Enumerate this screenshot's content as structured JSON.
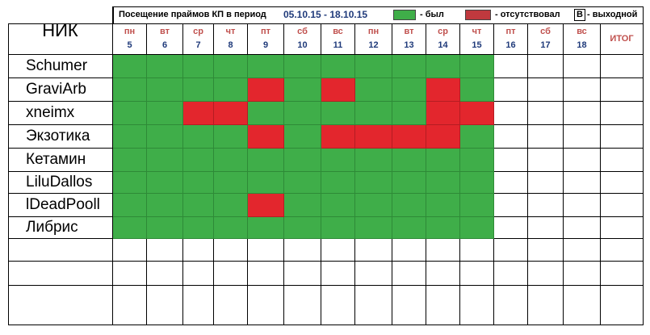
{
  "header": {
    "title": "Посещение праймов КП в период",
    "period": "05.10.15 - 18.10.15",
    "nik_label": "НИК",
    "itog_label": "ИТОГ"
  },
  "legend": {
    "present_label": "- был",
    "absent_label": "-  отсутствовал",
    "weekend_marker": "В",
    "weekend_label": "- выходной",
    "present_color": "#3fae49",
    "absent_color": "#e3262d"
  },
  "days": [
    {
      "dow": "пн",
      "num": "5"
    },
    {
      "dow": "вт",
      "num": "6"
    },
    {
      "dow": "ср",
      "num": "7"
    },
    {
      "dow": "чт",
      "num": "8"
    },
    {
      "dow": "пт",
      "num": "9"
    },
    {
      "dow": "сб",
      "num": "10"
    },
    {
      "dow": "вс",
      "num": "11"
    },
    {
      "dow": "пн",
      "num": "12"
    },
    {
      "dow": "вт",
      "num": "13"
    },
    {
      "dow": "ср",
      "num": "14"
    },
    {
      "dow": "чт",
      "num": "15"
    },
    {
      "dow": "пт",
      "num": "16"
    },
    {
      "dow": "сб",
      "num": "17"
    },
    {
      "dow": "вс",
      "num": "18"
    }
  ],
  "rows": [
    {
      "name": "Schumer",
      "marks": [
        "G",
        "G",
        "G",
        "G",
        "G",
        "G",
        "G",
        "G",
        "G",
        "G",
        "G",
        "",
        "",
        ""
      ]
    },
    {
      "name": "GraviArb",
      "marks": [
        "G",
        "G",
        "G",
        "G",
        "R",
        "G",
        "R",
        "G",
        "G",
        "R",
        "G",
        "",
        "",
        ""
      ]
    },
    {
      "name": "xneimx",
      "marks": [
        "G",
        "G",
        "R",
        "R",
        "G",
        "G",
        "G",
        "G",
        "G",
        "R",
        "R",
        "",
        "",
        ""
      ]
    },
    {
      "name": "Экзотика",
      "marks": [
        "G",
        "G",
        "G",
        "G",
        "R",
        "G",
        "R",
        "R",
        "R",
        "R",
        "G",
        "",
        "",
        ""
      ]
    },
    {
      "name": "Кетамин",
      "marks": [
        "G",
        "G",
        "G",
        "G",
        "G",
        "G",
        "G",
        "G",
        "G",
        "G",
        "G",
        "",
        "",
        ""
      ]
    },
    {
      "name": "LiluDallos",
      "marks": [
        "G",
        "G",
        "G",
        "G",
        "G",
        "G",
        "G",
        "G",
        "G",
        "G",
        "G",
        "",
        "",
        ""
      ]
    },
    {
      "name": "lDeadPooll",
      "marks": [
        "G",
        "G",
        "G",
        "G",
        "R",
        "G",
        "G",
        "G",
        "G",
        "G",
        "G",
        "",
        "",
        ""
      ]
    },
    {
      "name": "Либрис",
      "marks": [
        "G",
        "G",
        "G",
        "G",
        "G",
        "G",
        "G",
        "G",
        "G",
        "G",
        "G",
        "",
        "",
        ""
      ]
    },
    {
      "name": "",
      "marks": [
        "",
        "",
        "",
        "",
        "",
        "",
        "",
        "",
        "",
        "",
        "",
        "",
        "",
        ""
      ]
    },
    {
      "name": "",
      "marks": [
        "",
        "",
        "",
        "",
        "",
        "",
        "",
        "",
        "",
        "",
        "",
        "",
        "",
        ""
      ]
    },
    {
      "name": "",
      "marks": [
        "",
        "",
        "",
        "",
        "",
        "",
        "",
        "",
        "",
        "",
        "",
        "",
        "",
        ""
      ]
    }
  ]
}
